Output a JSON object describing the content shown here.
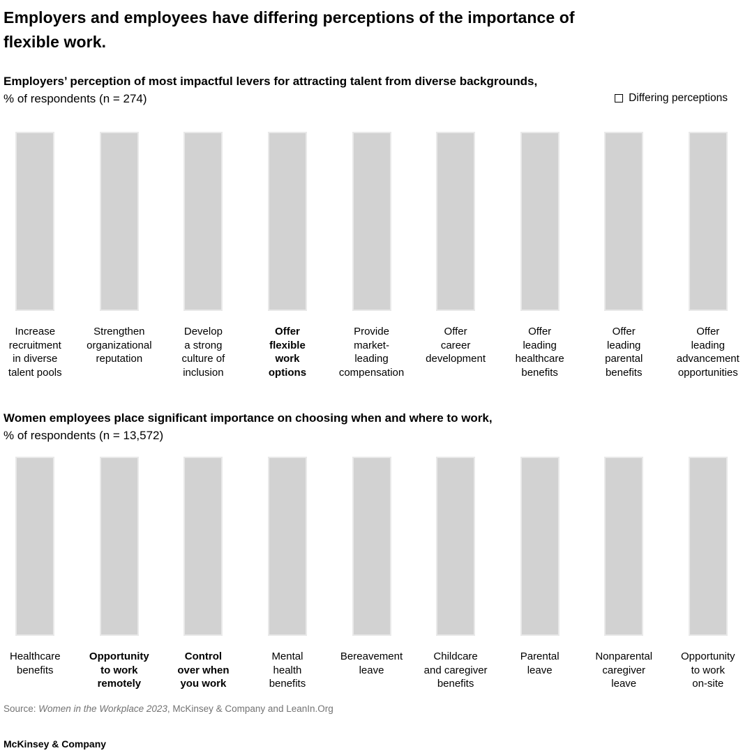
{
  "page": {
    "title": "Employers and employees have differing perceptions of the importance of\nflexible work."
  },
  "legend": {
    "label": "Differing perceptions",
    "swatch": "empty-square",
    "swatch_fill": "#ffffff",
    "swatch_border": "#000000"
  },
  "colors": {
    "background": "#ffffff",
    "bar_fill": "#d2d2d2",
    "bar_edge": "#e9e9e9",
    "text": "#000000",
    "source_text": "#737373"
  },
  "charts": [
    {
      "heading": "Employers’ perception of most impactful levers for attracting talent from diverse backgrounds,",
      "subtitle": "% of respondents (n = 274)",
      "items": [
        {
          "label": "Increase\nrecruitment\nin diverse\ntalent pools",
          "differing": false
        },
        {
          "label": "Strengthen\norganizational\nreputation",
          "differing": false
        },
        {
          "label": "Develop\na strong\nculture of\ninclusion",
          "differing": false
        },
        {
          "label": "Offer\nflexible\nwork\noptions",
          "differing": true
        },
        {
          "label": "Provide\nmarket-\nleading\ncompensation",
          "differing": false
        },
        {
          "label": "Offer\ncareer\ndevelopment",
          "differing": false
        },
        {
          "label": "Offer\nleading\nhealthcare\nbenefits",
          "differing": false
        },
        {
          "label": "Offer\nleading\nparental\nbenefits",
          "differing": false
        },
        {
          "label": "Offer\nleading\nadvancement\nopportunities",
          "differing": false
        }
      ]
    },
    {
      "heading": "Women employees place significant importance on choosing when and where to work,",
      "subtitle": "% of respondents (n = 13,572)",
      "items": [
        {
          "label": "Healthcare\nbenefits",
          "differing": false
        },
        {
          "label": "Opportunity\nto work\nremotely",
          "differing": true
        },
        {
          "label": "Control\nover when\nyou work",
          "differing": true
        },
        {
          "label": "Mental\nhealth\nbenefits",
          "differing": false
        },
        {
          "label": "Bereavement\nleave",
          "differing": false
        },
        {
          "label": "Childcare\nand caregiver\nbenefits",
          "differing": false
        },
        {
          "label": "Parental\nleave",
          "differing": false
        },
        {
          "label": "Nonparental\ncaregiver\nleave",
          "differing": false
        },
        {
          "label": "Opportunity\nto work\non-site",
          "differing": false
        }
      ]
    }
  ],
  "source": {
    "prefix": "Source: ",
    "italic": "Women in the Workplace 2023",
    "rest": ", McKinsey & Company and LeanIn.Org"
  },
  "footer": {
    "brand": "McKinsey & Company"
  },
  "chart_data": [
    {
      "type": "bar",
      "title": "Employers’ perception of most impactful levers for attracting talent from diverse backgrounds,",
      "subtitle": "% of respondents (n = 274)",
      "categories": [
        "Increase recruitment in diverse talent pools",
        "Strengthen organizational reputation",
        "Develop a strong culture of inclusion",
        "Offer flexible work options",
        "Provide market-leading compensation",
        "Offer career development",
        "Offer leading healthcare benefits",
        "Offer leading parental benefits",
        "Offer leading advancement opportunities"
      ],
      "values": [
        null,
        null,
        null,
        null,
        null,
        null,
        null,
        null,
        null
      ],
      "values_shown_in_image": false,
      "all_bars_equal_rendered_height": true,
      "differing_categories": [
        "Offer flexible work options"
      ],
      "legend": [
        "Differing perceptions"
      ],
      "bar_color": "#d2d2d2",
      "axes_shown": false,
      "grid": false
    },
    {
      "type": "bar",
      "title": "Women employees place significant importance on choosing when and where to work,",
      "subtitle": "% of respondents (n = 13,572)",
      "categories": [
        "Healthcare benefits",
        "Opportunity to work remotely",
        "Control over when you work",
        "Mental health benefits",
        "Bereavement leave",
        "Childcare and caregiver benefits",
        "Parental leave",
        "Nonparental caregiver leave",
        "Opportunity to work on-site"
      ],
      "values": [
        null,
        null,
        null,
        null,
        null,
        null,
        null,
        null,
        null
      ],
      "values_shown_in_image": false,
      "all_bars_equal_rendered_height": true,
      "differing_categories": [
        "Opportunity to work remotely",
        "Control over when you work"
      ],
      "legend": [
        "Differing perceptions"
      ],
      "bar_color": "#d2d2d2",
      "axes_shown": false,
      "grid": false
    }
  ]
}
